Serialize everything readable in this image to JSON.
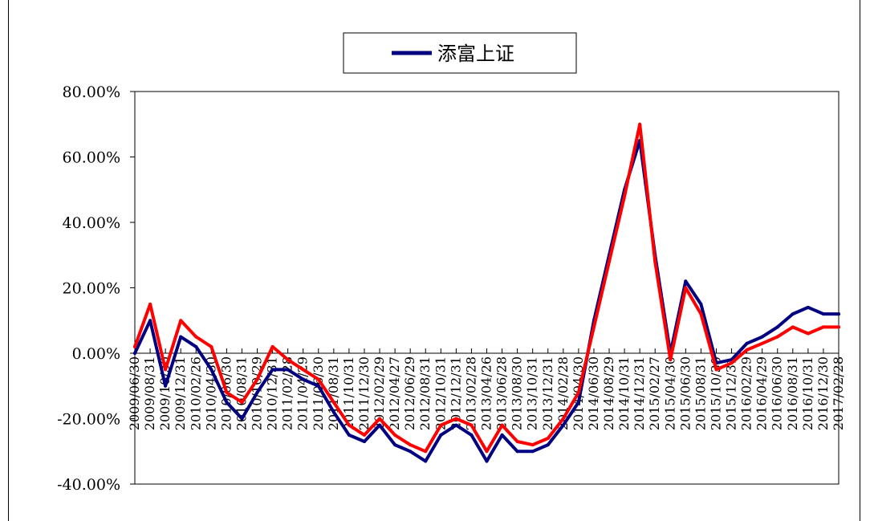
{
  "colors": {
    "series_1": "#000080",
    "series_2": "#ff0000",
    "axis": "#000000"
  },
  "legend": {
    "label": "添富上证",
    "placement": "top-center"
  },
  "chart_data": {
    "type": "line",
    "title": "",
    "xlabel": "",
    "ylabel": "",
    "ylim": [
      -40,
      80
    ],
    "y_ticks": [
      "80.00%",
      "60.00%",
      "40.00%",
      "20.00%",
      "0.00%",
      "-20.00%",
      "-40.00%"
    ],
    "y_tick_values": [
      80,
      60,
      40,
      20,
      0,
      -20,
      -40
    ],
    "x_tick_labels": [
      "2009/06/30",
      "2009/08/31",
      "2009/10/30",
      "2009/12/31",
      "2010/02/26",
      "2010/04/30",
      "2010/06/30",
      "2010/08/31",
      "2010/10/29",
      "2010/12/31",
      "2011/02/28",
      "2011/04/29",
      "2011/06/30",
      "2011/08/31",
      "2011/10/31",
      "2011/12/30",
      "2012/02/29",
      "2012/04/27",
      "2012/06/29",
      "2012/08/31",
      "2012/10/31",
      "2012/12/31",
      "2013/02/28",
      "2013/04/26",
      "2013/06/28",
      "2013/08/30",
      "2013/10/31",
      "2013/12/31",
      "2014/02/28",
      "2014/04/30",
      "2014/06/30",
      "2014/08/29",
      "2014/10/31",
      "2014/12/31",
      "2015/02/27",
      "2015/04/30",
      "2015/06/30",
      "2015/08/31",
      "2015/10/30",
      "2015/12/31",
      "2016/02/29",
      "2016/04/29",
      "2016/06/30",
      "2016/08/31",
      "2016/10/31",
      "2016/12/30",
      "2017/02/28"
    ],
    "series": [
      {
        "name": "添富上证",
        "x": [
          "2009/06/30",
          "2009/08/31",
          "2009/10/30",
          "2009/12/31",
          "2010/02/26",
          "2010/04/30",
          "2010/06/30",
          "2010/08/31",
          "2010/10/29",
          "2010/12/31",
          "2011/02/28",
          "2011/04/29",
          "2011/06/30",
          "2011/08/31",
          "2011/10/31",
          "2011/12/30",
          "2012/02/29",
          "2012/04/27",
          "2012/06/29",
          "2012/08/31",
          "2012/10/31",
          "2012/12/31",
          "2013/02/28",
          "2013/04/26",
          "2013/06/28",
          "2013/08/30",
          "2013/10/31",
          "2013/12/31",
          "2014/02/28",
          "2014/04/30",
          "2014/06/30",
          "2014/08/29",
          "2014/10/31",
          "2014/12/31",
          "2015/02/27",
          "2015/04/30",
          "2015/06/30",
          "2015/08/31",
          "2015/10/30",
          "2015/12/31",
          "2016/02/29",
          "2016/04/29",
          "2016/06/30",
          "2016/08/31",
          "2016/10/31",
          "2016/12/30",
          "2017/02/28"
        ],
        "values": [
          0,
          10,
          -10,
          5,
          2,
          -5,
          -15,
          -20,
          -12,
          -5,
          -5,
          -8,
          -10,
          -18,
          -25,
          -27,
          -22,
          -28,
          -30,
          -33,
          -25,
          -22,
          -25,
          -33,
          -25,
          -30,
          -30,
          -28,
          -22,
          -15,
          10,
          30,
          50,
          65,
          30,
          0,
          22,
          15,
          -3,
          -2,
          3,
          5,
          8,
          12,
          14,
          12,
          12
        ]
      },
      {
        "name": "",
        "x": [
          "2009/06/30",
          "2009/08/31",
          "2009/10/30",
          "2009/12/31",
          "2010/02/26",
          "2010/04/30",
          "2010/06/30",
          "2010/08/31",
          "2010/10/29",
          "2010/12/31",
          "2011/02/28",
          "2011/04/29",
          "2011/06/30",
          "2011/08/31",
          "2011/10/31",
          "2011/12/30",
          "2012/02/29",
          "2012/04/27",
          "2012/06/29",
          "2012/08/31",
          "2012/10/31",
          "2012/12/31",
          "2013/02/28",
          "2013/04/26",
          "2013/06/28",
          "2013/08/30",
          "2013/10/31",
          "2013/12/31",
          "2014/02/28",
          "2014/04/30",
          "2014/06/30",
          "2014/08/29",
          "2014/10/31",
          "2014/12/31",
          "2015/02/27",
          "2015/04/30",
          "2015/06/30",
          "2015/08/31",
          "2015/10/30",
          "2015/12/31",
          "2016/02/29",
          "2016/04/29",
          "2016/06/30",
          "2016/08/31",
          "2016/10/31",
          "2016/12/30",
          "2017/02/28"
        ],
        "values": [
          2,
          15,
          -5,
          10,
          5,
          2,
          -12,
          -15,
          -8,
          2,
          -2,
          -5,
          -8,
          -15,
          -22,
          -25,
          -20,
          -25,
          -28,
          -30,
          -22,
          -20,
          -22,
          -30,
          -22,
          -27,
          -28,
          -26,
          -20,
          -12,
          8,
          28,
          48,
          70,
          28,
          -2,
          20,
          12,
          -5,
          -3,
          1,
          3,
          5,
          8,
          6,
          8,
          8
        ]
      }
    ]
  }
}
